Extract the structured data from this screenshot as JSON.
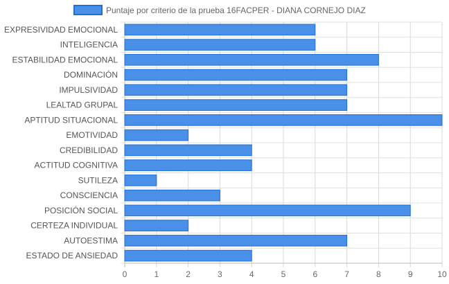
{
  "chart_data": {
    "type": "bar",
    "orientation": "horizontal",
    "title": "",
    "xlabel": "",
    "ylabel": "",
    "categories": [
      "EXPRESIVIDAD EMOCIONAL",
      "INTELIGENCIA",
      "ESTABILIDAD EMOCIONAL",
      "DOMINACIÓN",
      "IMPULSIVIDAD",
      "LEALTAD GRUPAL",
      "APTITUD SITUACIONAL",
      "EMOTIVIDAD",
      "CREDIBILIDAD",
      "ACTITUD COGNITIVA",
      "SUTILEZA",
      "CONSCIENCIA",
      "POSICIÓN SOCIAL",
      "CERTEZA INDIVIDUAL",
      "AUTOESTIMA",
      "ESTADO DE ANSIEDAD"
    ],
    "series": [
      {
        "name": "Puntaje por criterio de la prueba 16FACPER - DIANA CORNEJO DIAZ",
        "values": [
          6,
          6,
          8,
          7,
          7,
          7,
          10,
          2,
          4,
          4,
          1,
          3,
          9,
          2,
          7,
          4
        ],
        "color": "#4a90e8",
        "border_color": "#1c6fd6"
      }
    ],
    "xlim": [
      0,
      10
    ],
    "x_ticks": [
      "0",
      "1",
      "2",
      "3",
      "4",
      "5",
      "6",
      "7",
      "8",
      "9",
      "10"
    ],
    "grid": true,
    "legend_position": "top"
  }
}
